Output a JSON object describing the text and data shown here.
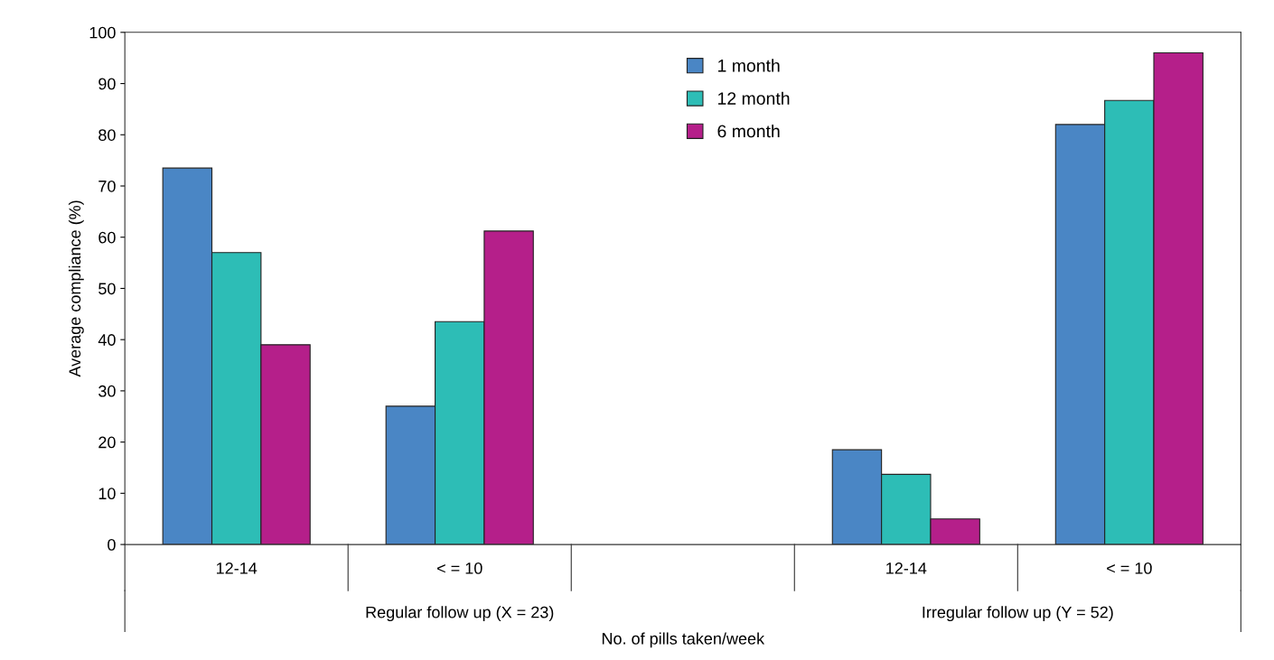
{
  "chart_data": {
    "type": "bar",
    "xlabel": "No. of pills taken/week",
    "ylabel": "Average compliance (%)",
    "categories": [
      "12-14",
      "< = 10",
      null,
      "12-14",
      "< = 10"
    ],
    "series": [
      {
        "name": "1 month",
        "color": "#4a86c5",
        "values": [
          73.5,
          27,
          null,
          18.5,
          82
        ]
      },
      {
        "name": "12 month",
        "color": "#2dbdb6",
        "values": [
          57,
          43.5,
          null,
          13.7,
          86.7
        ]
      },
      {
        "name": "6 month",
        "color": "#b51f8a",
        "values": [
          39,
          61.2,
          null,
          5,
          96
        ]
      }
    ],
    "annotations": [
      "Regular follow up (X = 23)",
      "Irregular follow up (Y = 52)"
    ],
    "ylim": [
      0,
      100
    ],
    "yticks": [
      0,
      10,
      20,
      30,
      40,
      50,
      60,
      70,
      80,
      90,
      100
    ],
    "grid": false,
    "legend": "top"
  }
}
